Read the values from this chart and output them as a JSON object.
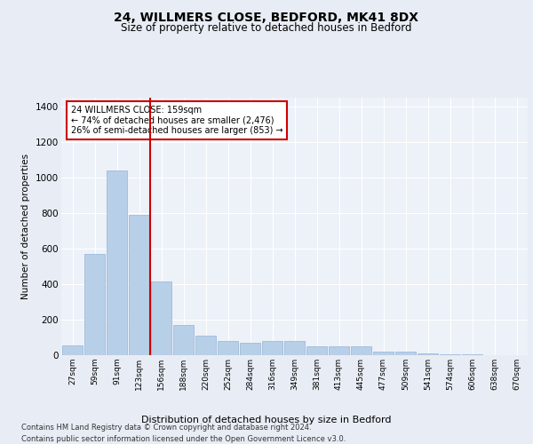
{
  "title1": "24, WILLMERS CLOSE, BEDFORD, MK41 8DX",
  "title2": "Size of property relative to detached houses in Bedford",
  "xlabel": "Distribution of detached houses by size in Bedford",
  "ylabel": "Number of detached properties",
  "categories": [
    "27sqm",
    "59sqm",
    "91sqm",
    "123sqm",
    "156sqm",
    "188sqm",
    "220sqm",
    "252sqm",
    "284sqm",
    "316sqm",
    "349sqm",
    "381sqm",
    "413sqm",
    "445sqm",
    "477sqm",
    "509sqm",
    "541sqm",
    "574sqm",
    "606sqm",
    "638sqm",
    "670sqm"
  ],
  "values": [
    57,
    570,
    1040,
    790,
    415,
    170,
    110,
    80,
    70,
    80,
    80,
    50,
    50,
    50,
    20,
    20,
    10,
    5,
    3,
    2,
    2
  ],
  "bar_color": "#b8cfe8",
  "bar_edge_color": "#93b3d8",
  "vline_color": "#cc0000",
  "annotation_text": "24 WILLMERS CLOSE: 159sqm\n← 74% of detached houses are smaller (2,476)\n26% of semi-detached houses are larger (853) →",
  "annotation_box_color": "#cc0000",
  "ylim": [
    0,
    1450
  ],
  "yticks": [
    0,
    200,
    400,
    600,
    800,
    1000,
    1200,
    1400
  ],
  "bg_color": "#e8edf5",
  "plot_bg": "#edf1f8",
  "footer1": "Contains HM Land Registry data © Crown copyright and database right 2024.",
  "footer2": "Contains public sector information licensed under the Open Government Licence v3.0."
}
